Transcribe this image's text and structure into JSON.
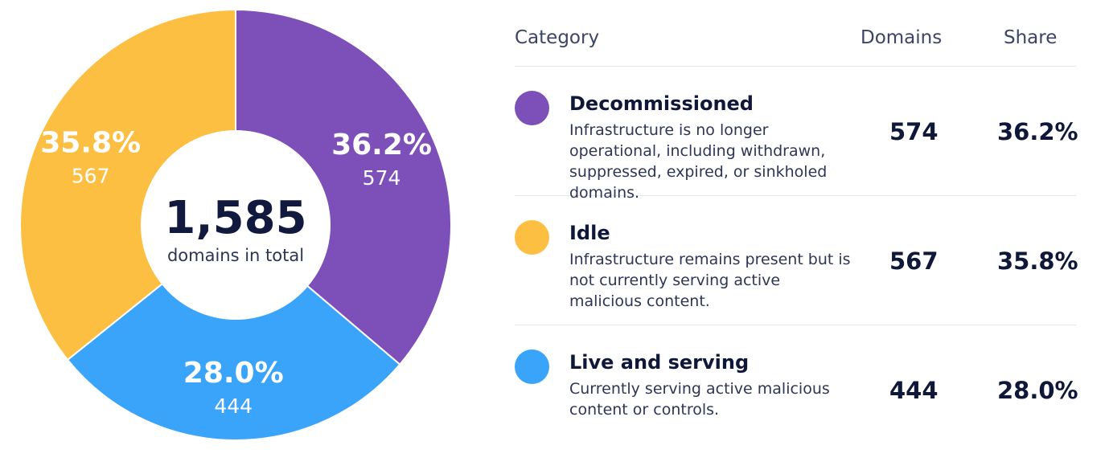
{
  "chart_data": {
    "type": "pie",
    "donut": true,
    "center": {
      "total": "1,585",
      "label": "domains in total"
    },
    "slices": [
      {
        "name": "Decommissioned",
        "value": 574,
        "share": "36.2%",
        "count_label": "574",
        "color": "#7d4fb8"
      },
      {
        "name": "Live and serving",
        "value": 444,
        "share": "28.0%",
        "count_label": "444",
        "color": "#3aa4fb"
      },
      {
        "name": "Idle",
        "value": 567,
        "share": "35.8%",
        "count_label": "567",
        "color": "#fcbf41"
      }
    ]
  },
  "table": {
    "headers": {
      "category": "Category",
      "domains": "Domains",
      "share": "Share"
    },
    "rows": [
      {
        "name": "Decommissioned",
        "description": "Infrastructure is no longer operational, including withdrawn, suppressed, expired, or sinkholed domains.",
        "domains": "574",
        "share": "36.2%",
        "color": "#7d4fb8"
      },
      {
        "name": "Idle",
        "description": "Infrastructure remains present but is not currently serving active malicious content.",
        "domains": "567",
        "share": "35.8%",
        "color": "#fcbf41"
      },
      {
        "name": "Live and serving",
        "description": "Currently serving active malicious content or controls.",
        "domains": "444",
        "share": "28.0%",
        "color": "#3aa4fb"
      }
    ]
  }
}
